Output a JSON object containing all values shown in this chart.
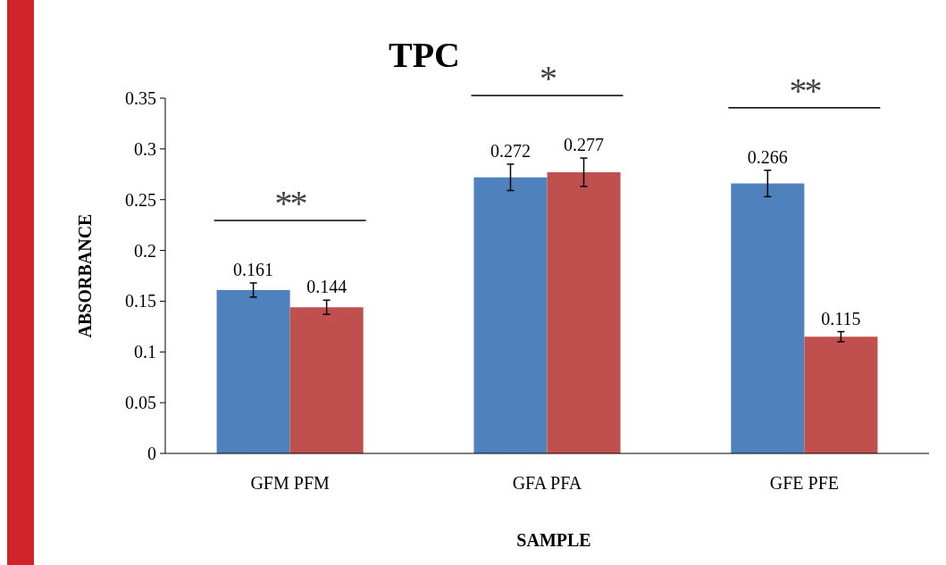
{
  "chart_data": {
    "type": "bar",
    "title": "TPC",
    "xlabel": "SAMPLE",
    "ylabel": "ABSORBANCE",
    "categories": [
      "GFM PFM",
      "GFA PFA",
      "GFE PFE"
    ],
    "series": [
      {
        "color": "#4f81bd",
        "values": [
          0.161,
          0.272,
          0.266
        ],
        "errors": [
          0.007,
          0.013,
          0.013
        ]
      },
      {
        "color": "#c0504d",
        "values": [
          0.144,
          0.277,
          0.115
        ],
        "errors": [
          0.007,
          0.014,
          0.005
        ]
      }
    ],
    "ylim": [
      0,
      0.35
    ],
    "yticks": [
      0,
      0.05,
      0.1,
      0.15,
      0.2,
      0.25,
      0.3,
      0.35
    ],
    "data_labels": true,
    "grid": false,
    "annotations": [
      "**",
      "*",
      "**"
    ]
  }
}
